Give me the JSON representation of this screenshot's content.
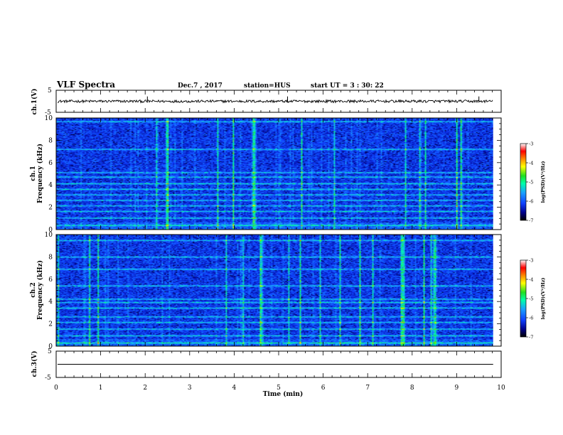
{
  "header": {
    "title": "VLF Spectra",
    "date": "Dec.7 , 2017",
    "station": "station=HUS",
    "start": "start UT = 3 : 30: 22"
  },
  "chart_data": [
    {
      "type": "line",
      "name_label": "ch.1(V)",
      "ylabel": "ch.1(V)",
      "xlim": [
        0,
        10
      ],
      "ylim": [
        -5,
        5
      ],
      "yticks": [
        "5",
        "-5"
      ],
      "baseline_v": 0,
      "spikes_min": [
        2.05,
        5.2,
        9.5
      ],
      "end_min": 9.82
    },
    {
      "type": "heatmap",
      "ylabel_top": "ch.1",
      "ylabel": "Frequency (kHz)",
      "xlim": [
        0,
        10
      ],
      "ylim": [
        0,
        10
      ],
      "yticks": [
        "0",
        "2",
        "4",
        "6",
        "8",
        "10"
      ],
      "z_label": "log(PSD)(V²/Hz)",
      "z_ticks": [
        "-3",
        "-4",
        "-5",
        "-6",
        "-7"
      ],
      "zlim": [
        -7,
        -3
      ],
      "bands_khz": [
        0.35,
        1.0,
        1.6,
        2.1,
        2.6,
        3.1,
        3.6,
        4.1,
        4.7,
        5.1,
        7.2,
        9.7
      ],
      "end_min": 9.82
    },
    {
      "type": "heatmap",
      "ylabel_top": "ch.2",
      "ylabel": "Frequency (kHz)",
      "xlim": [
        0,
        10
      ],
      "ylim": [
        0,
        10
      ],
      "yticks": [
        "0",
        "2",
        "4",
        "6",
        "8",
        "10"
      ],
      "z_label": "log(PSD)(V²/Hz)",
      "z_ticks": [
        "-3",
        "-4",
        "-5",
        "-6",
        "-7"
      ],
      "zlim": [
        -7,
        -3
      ],
      "bands_khz": [
        0.25,
        0.9,
        1.5,
        2.1,
        2.6,
        3.4,
        3.9,
        4.2,
        5.4,
        6.9,
        8.0,
        9.5
      ],
      "end_min": 9.82
    },
    {
      "type": "line",
      "name_label": "ch.3(V)",
      "ylabel": "ch.3(V)",
      "xlim": [
        0,
        10
      ],
      "ylim": [
        -5,
        5
      ],
      "yticks": [
        "5",
        "-5"
      ],
      "baseline_v": 0,
      "end_min": 9.82
    }
  ],
  "xaxis": {
    "label": "Time (min)",
    "ticks": [
      "0",
      "1",
      "2",
      "3",
      "4",
      "5",
      "6",
      "7",
      "8",
      "9",
      "10"
    ]
  },
  "colors": {
    "background": "#ffffff",
    "axis": "#000000",
    "colormap": [
      "#000000",
      "#00008a",
      "#1040ff",
      "#1aa0ff",
      "#00ffaa",
      "#20e020",
      "#ffff00",
      "#ff8800",
      "#ff0000",
      "#ffffff"
    ]
  }
}
